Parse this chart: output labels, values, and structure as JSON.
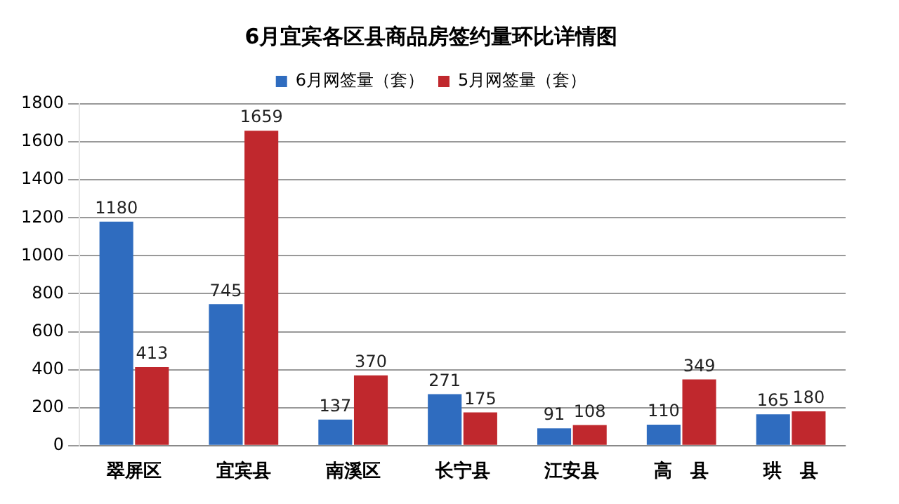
{
  "chart_data": {
    "type": "bar",
    "title": "6月宜宾各区县商品房签约量环比详情图",
    "categories": [
      "翠屏区",
      "宜宾县",
      "南溪区",
      "长宁县",
      "江安县",
      "高　县",
      "珙　县"
    ],
    "series": [
      {
        "name": "6月网签量（套）",
        "color": "#2f6cbf",
        "values": [
          1180,
          745,
          137,
          271,
          91,
          110,
          165
        ]
      },
      {
        "name": "5月网签量（套）",
        "color": "#c0282d",
        "values": [
          413,
          1659,
          370,
          175,
          108,
          349,
          180
        ]
      }
    ],
    "ylim": [
      0,
      1800
    ],
    "yticks": [
      0,
      200,
      400,
      600,
      800,
      1000,
      1200,
      1400,
      1600,
      1800
    ],
    "grid": "y",
    "legend": "top",
    "data_labels": true
  }
}
